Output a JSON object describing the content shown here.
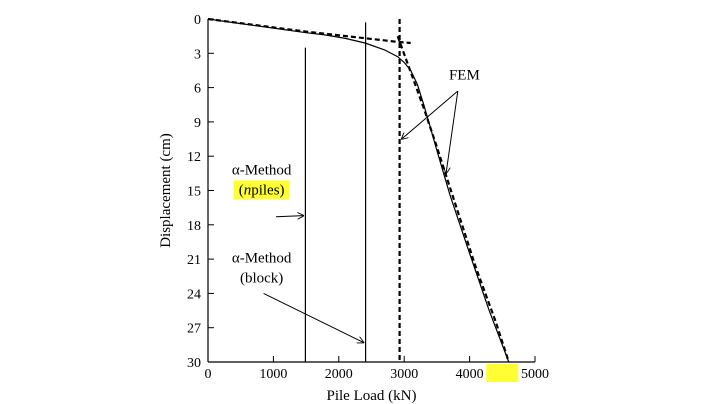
{
  "chart_data": {
    "type": "line",
    "xlabel": "Pile Load (kN)",
    "ylabel": "Displacement (cm)",
    "xlim": [
      0,
      5000
    ],
    "ylim": [
      0,
      30
    ],
    "y_inverted": true,
    "x_ticks": [
      0,
      1000,
      2000,
      3000,
      4000,
      5000
    ],
    "x_tick_labels": [
      "0",
      "1000",
      "2000",
      "3000",
      "4000",
      "5000"
    ],
    "y_ticks": [
      0,
      3,
      6,
      9,
      12,
      15,
      18,
      21,
      24,
      27,
      30
    ],
    "y_tick_labels": [
      "0",
      "3",
      "6",
      "9",
      "12",
      "15",
      "18",
      "21",
      "24",
      "27",
      "30"
    ],
    "grid": false,
    "highlight_color": "#ffff33",
    "highlighted_x_tick": 4500,
    "series": [
      {
        "style": "solid",
        "points": [
          [
            0,
            0
          ],
          [
            500,
            0.4
          ],
          [
            1000,
            0.8
          ],
          [
            1500,
            1.2
          ],
          [
            1800,
            1.4
          ],
          [
            2100,
            1.7
          ],
          [
            2400,
            2.1
          ],
          [
            2700,
            2.7
          ],
          [
            2900,
            3.3
          ],
          [
            3000,
            3.8
          ],
          [
            3100,
            4.5
          ],
          [
            3200,
            5.7
          ],
          [
            3300,
            7.5
          ],
          [
            3400,
            9.5
          ],
          [
            3500,
            11.5
          ],
          [
            3700,
            15.4
          ],
          [
            4000,
            20.5
          ],
          [
            4300,
            25.5
          ],
          [
            4600,
            30
          ]
        ]
      },
      {
        "style": "dashed",
        "points": [
          [
            0,
            0
          ],
          [
            1500,
            1.1
          ],
          [
            2900,
            2.0
          ],
          [
            3100,
            2.1
          ]
        ]
      },
      {
        "style": "dashed",
        "points": [
          [
            2900,
            1.5
          ],
          [
            3300,
            7.8
          ],
          [
            3500,
            11.2
          ],
          [
            3800,
            16.5
          ],
          [
            4100,
            21.8
          ],
          [
            4400,
            26.5
          ],
          [
            4600,
            30
          ]
        ]
      },
      {
        "style": "dashed",
        "points": [
          [
            2930,
            0
          ],
          [
            2930,
            30
          ]
        ]
      },
      {
        "style": "solid",
        "points": [
          [
            1490,
            2.5
          ],
          [
            1490,
            30
          ]
        ]
      },
      {
        "style": "solid",
        "points": [
          [
            2410,
            0.3
          ],
          [
            2410,
            30
          ]
        ]
      }
    ],
    "annotations": [
      {
        "lines": [
          "α-Method",
          "(npiles)"
        ],
        "italic_char": "n",
        "highlight_second_line": true,
        "x": 820,
        "y": 13.6,
        "arrow_from": [
          1040,
          17.3
        ],
        "arrow_to": [
          1460,
          17.2
        ]
      },
      {
        "lines": [
          "α-Method",
          "(block)"
        ],
        "x": 820,
        "y": 21.3,
        "arrow_from": [
          850,
          24.0
        ],
        "arrow_to": [
          2380,
          28.3
        ]
      },
      {
        "lines": [
          "FEM"
        ],
        "x": 3920,
        "y": 5.3,
        "arrow_from": [
          3820,
          6.3
        ],
        "arrow_to": [
          2960,
          10.5
        ],
        "arrow_to_2": [
          3640,
          13.5
        ]
      }
    ]
  }
}
